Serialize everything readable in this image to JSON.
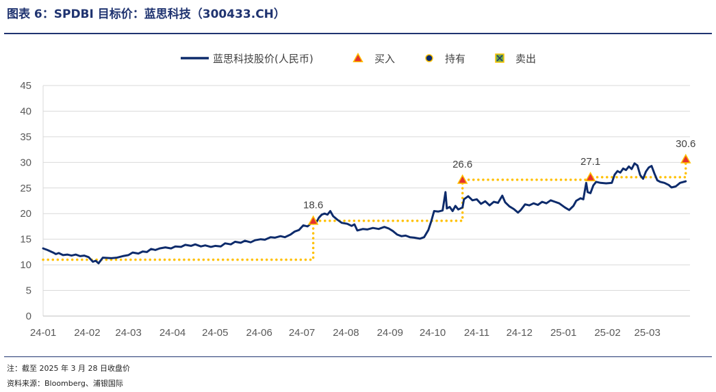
{
  "header": {
    "title": "图表 6：SPDBI 目标价：蓝思科技（300433.CH）"
  },
  "footer": {
    "note": "注：截至 2025 年 3 月 28 日收盘价",
    "source": "资料来源：Bloomberg、浦银国际"
  },
  "colors": {
    "price_line": "#0d2b6b",
    "target_line": "#ffc000",
    "buy_marker_fill": "#e5322d",
    "buy_marker_edge": "#ffc000",
    "hold_marker_fill": "#0d2b6b",
    "hold_marker_edge": "#ffc000",
    "sell_marker_fill": "#70ad47",
    "sell_marker_edge": "#ffc000",
    "grid": "#d9d9d9",
    "title": "#1f3370"
  },
  "chart_data": {
    "type": "line",
    "ylim": [
      0,
      45
    ],
    "yticks": [
      0,
      5,
      10,
      15,
      20,
      25,
      30,
      35,
      40,
      45
    ],
    "xlim": [
      "2024-01-01",
      "2025-03-31"
    ],
    "xticks": [
      {
        "date": "2024-01-01",
        "label": "24-01"
      },
      {
        "date": "2024-02-01",
        "label": "24-02"
      },
      {
        "date": "2024-03-01",
        "label": "24-03"
      },
      {
        "date": "2024-04-01",
        "label": "24-04"
      },
      {
        "date": "2024-05-01",
        "label": "24-05"
      },
      {
        "date": "2024-06-01",
        "label": "24-06"
      },
      {
        "date": "2024-07-01",
        "label": "24-07"
      },
      {
        "date": "2024-08-01",
        "label": "24-08"
      },
      {
        "date": "2024-09-01",
        "label": "24-09"
      },
      {
        "date": "2024-10-01",
        "label": "24-10"
      },
      {
        "date": "2024-11-01",
        "label": "24-11"
      },
      {
        "date": "2024-12-01",
        "label": "24-12"
      },
      {
        "date": "2025-01-01",
        "label": "25-01"
      },
      {
        "date": "2025-02-01",
        "label": "25-02"
      },
      {
        "date": "2025-03-01",
        "label": "25-03"
      }
    ],
    "grid": "horizontal",
    "legend_position": "top",
    "legend": [
      {
        "key": "price",
        "label": "蓝思科技股价(人民币)",
        "marker": "line"
      },
      {
        "key": "buy",
        "label": "买入",
        "marker": "triangle"
      },
      {
        "key": "hold",
        "label": "持有",
        "marker": "circle"
      },
      {
        "key": "sell",
        "label": "卖出",
        "marker": "square-x"
      }
    ],
    "price_series": {
      "name": "蓝思科技股价(人民币)",
      "points": [
        [
          "2024-01-01",
          13.2
        ],
        [
          "2024-01-04",
          12.9
        ],
        [
          "2024-01-08",
          12.4
        ],
        [
          "2024-01-10",
          12.1
        ],
        [
          "2024-01-12",
          12.3
        ],
        [
          "2024-01-15",
          11.9
        ],
        [
          "2024-01-18",
          12.0
        ],
        [
          "2024-01-21",
          11.8
        ],
        [
          "2024-01-24",
          12.0
        ],
        [
          "2024-01-27",
          11.7
        ],
        [
          "2024-01-30",
          11.8
        ],
        [
          "2024-02-02",
          11.5
        ],
        [
          "2024-02-05",
          10.6
        ],
        [
          "2024-02-07",
          10.8
        ],
        [
          "2024-02-09",
          10.3
        ],
        [
          "2024-02-12",
          11.4
        ],
        [
          "2024-02-18",
          11.3
        ],
        [
          "2024-02-22",
          11.4
        ],
        [
          "2024-02-26",
          11.7
        ],
        [
          "2024-03-01",
          11.9
        ],
        [
          "2024-03-04",
          12.4
        ],
        [
          "2024-03-08",
          12.2
        ],
        [
          "2024-03-11",
          12.6
        ],
        [
          "2024-03-14",
          12.5
        ],
        [
          "2024-03-17",
          13.1
        ],
        [
          "2024-03-20",
          12.9
        ],
        [
          "2024-03-23",
          13.2
        ],
        [
          "2024-03-27",
          13.4
        ],
        [
          "2024-03-31",
          13.2
        ],
        [
          "2024-04-03",
          13.6
        ],
        [
          "2024-04-07",
          13.5
        ],
        [
          "2024-04-10",
          13.9
        ],
        [
          "2024-04-14",
          13.7
        ],
        [
          "2024-04-17",
          14.0
        ],
        [
          "2024-04-21",
          13.6
        ],
        [
          "2024-04-24",
          13.8
        ],
        [
          "2024-04-28",
          13.5
        ],
        [
          "2024-05-01",
          13.7
        ],
        [
          "2024-05-05",
          13.6
        ],
        [
          "2024-05-08",
          14.2
        ],
        [
          "2024-05-12",
          14.0
        ],
        [
          "2024-05-15",
          14.5
        ],
        [
          "2024-05-19",
          14.3
        ],
        [
          "2024-05-22",
          14.7
        ],
        [
          "2024-05-26",
          14.4
        ],
        [
          "2024-05-29",
          14.8
        ],
        [
          "2024-06-02",
          15.0
        ],
        [
          "2024-06-05",
          14.9
        ],
        [
          "2024-06-09",
          15.4
        ],
        [
          "2024-06-12",
          15.3
        ],
        [
          "2024-06-16",
          15.6
        ],
        [
          "2024-06-19",
          15.4
        ],
        [
          "2024-06-23",
          15.9
        ],
        [
          "2024-06-26",
          16.5
        ],
        [
          "2024-06-29",
          16.8
        ],
        [
          "2024-07-02",
          17.7
        ],
        [
          "2024-07-05",
          17.5
        ],
        [
          "2024-07-07",
          18.0
        ],
        [
          "2024-07-09",
          18.4
        ],
        [
          "2024-07-11",
          18.2
        ],
        [
          "2024-07-13",
          19.2
        ],
        [
          "2024-07-15",
          19.8
        ],
        [
          "2024-07-17",
          20.0
        ],
        [
          "2024-07-19",
          19.8
        ],
        [
          "2024-07-21",
          20.5
        ],
        [
          "2024-07-23",
          19.5
        ],
        [
          "2024-07-26",
          18.8
        ],
        [
          "2024-07-29",
          18.2
        ],
        [
          "2024-08-02",
          18.0
        ],
        [
          "2024-08-05",
          17.6
        ],
        [
          "2024-08-07",
          17.9
        ],
        [
          "2024-08-09",
          16.7
        ],
        [
          "2024-08-13",
          17.0
        ],
        [
          "2024-08-16",
          16.9
        ],
        [
          "2024-08-20",
          17.2
        ],
        [
          "2024-08-24",
          17.0
        ],
        [
          "2024-08-28",
          17.4
        ],
        [
          "2024-08-31",
          17.1
        ],
        [
          "2024-09-03",
          16.6
        ],
        [
          "2024-09-06",
          15.9
        ],
        [
          "2024-09-09",
          15.6
        ],
        [
          "2024-09-12",
          15.7
        ],
        [
          "2024-09-15",
          15.4
        ],
        [
          "2024-09-18",
          15.3
        ],
        [
          "2024-09-22",
          15.1
        ],
        [
          "2024-09-25",
          15.4
        ],
        [
          "2024-09-28",
          16.8
        ],
        [
          "2024-09-30",
          18.5
        ],
        [
          "2024-10-02",
          20.5
        ],
        [
          "2024-10-05",
          20.4
        ],
        [
          "2024-10-08",
          20.6
        ],
        [
          "2024-10-10",
          24.2
        ],
        [
          "2024-10-11",
          21.0
        ],
        [
          "2024-10-13",
          21.3
        ],
        [
          "2024-10-15",
          20.5
        ],
        [
          "2024-10-17",
          21.5
        ],
        [
          "2024-10-19",
          20.8
        ],
        [
          "2024-10-22",
          21.2
        ],
        [
          "2024-10-23",
          22.8
        ],
        [
          "2024-10-26",
          23.4
        ],
        [
          "2024-10-29",
          22.6
        ],
        [
          "2024-11-01",
          22.8
        ],
        [
          "2024-11-04",
          21.9
        ],
        [
          "2024-11-07",
          22.4
        ],
        [
          "2024-11-10",
          21.6
        ],
        [
          "2024-11-13",
          22.3
        ],
        [
          "2024-11-16",
          22.1
        ],
        [
          "2024-11-19",
          23.5
        ],
        [
          "2024-11-21",
          22.2
        ],
        [
          "2024-11-24",
          21.4
        ],
        [
          "2024-11-27",
          20.9
        ],
        [
          "2024-11-30",
          20.2
        ],
        [
          "2024-12-02",
          20.7
        ],
        [
          "2024-12-05",
          21.8
        ],
        [
          "2024-12-08",
          21.6
        ],
        [
          "2024-12-11",
          22.0
        ],
        [
          "2024-12-14",
          21.7
        ],
        [
          "2024-12-17",
          22.3
        ],
        [
          "2024-12-20",
          22.0
        ],
        [
          "2024-12-23",
          22.6
        ],
        [
          "2024-12-26",
          22.3
        ],
        [
          "2024-12-29",
          22.0
        ],
        [
          "2025-01-02",
          21.2
        ],
        [
          "2025-01-05",
          20.7
        ],
        [
          "2025-01-08",
          21.5
        ],
        [
          "2025-01-10",
          22.5
        ],
        [
          "2025-01-13",
          23.0
        ],
        [
          "2025-01-15",
          22.8
        ],
        [
          "2025-01-17",
          26.0
        ],
        [
          "2025-01-18",
          24.2
        ],
        [
          "2025-01-20",
          24.0
        ],
        [
          "2025-01-22",
          25.5
        ],
        [
          "2025-01-24",
          26.2
        ],
        [
          "2025-01-27",
          26.0
        ],
        [
          "2025-01-31",
          25.9
        ],
        [
          "2025-02-04",
          26.0
        ],
        [
          "2025-02-06",
          27.6
        ],
        [
          "2025-02-08",
          28.3
        ],
        [
          "2025-02-10",
          28.0
        ],
        [
          "2025-02-12",
          28.8
        ],
        [
          "2025-02-14",
          28.5
        ],
        [
          "2025-02-16",
          29.2
        ],
        [
          "2025-02-18",
          28.7
        ],
        [
          "2025-02-20",
          29.8
        ],
        [
          "2025-02-22",
          29.4
        ],
        [
          "2025-02-24",
          27.5
        ],
        [
          "2025-02-26",
          26.8
        ],
        [
          "2025-02-28",
          28.2
        ],
        [
          "2025-03-02",
          29.0
        ],
        [
          "2025-03-04",
          29.3
        ],
        [
          "2025-03-06",
          27.8
        ],
        [
          "2025-03-08",
          26.5
        ],
        [
          "2025-03-10",
          26.2
        ],
        [
          "2025-03-13",
          26.0
        ],
        [
          "2025-03-16",
          25.6
        ],
        [
          "2025-03-18",
          25.1
        ],
        [
          "2025-03-21",
          25.3
        ],
        [
          "2025-03-24",
          26.0
        ],
        [
          "2025-03-28",
          26.3
        ]
      ]
    },
    "target_price_steps": [
      {
        "from": "2024-01-01",
        "to": "2024-07-09",
        "value": 11.0
      },
      {
        "from": "2024-07-09",
        "to": "2024-10-22",
        "value": 18.6
      },
      {
        "from": "2024-10-22",
        "to": "2025-01-20",
        "value": 26.6
      },
      {
        "from": "2025-01-20",
        "to": "2025-03-28",
        "value": 27.1
      },
      {
        "from": "2025-03-28",
        "to": "2025-03-28",
        "value": 30.6
      }
    ],
    "ratings": [
      {
        "date": "2024-07-09",
        "value": 18.6,
        "rating": "买入",
        "label": "18.6"
      },
      {
        "date": "2024-10-22",
        "value": 26.6,
        "rating": "买入",
        "label": "26.6"
      },
      {
        "date": "2025-01-20",
        "value": 27.1,
        "rating": "买入",
        "label": "27.1"
      },
      {
        "date": "2025-03-28",
        "value": 30.6,
        "rating": "买入",
        "label": "30.6"
      }
    ]
  }
}
